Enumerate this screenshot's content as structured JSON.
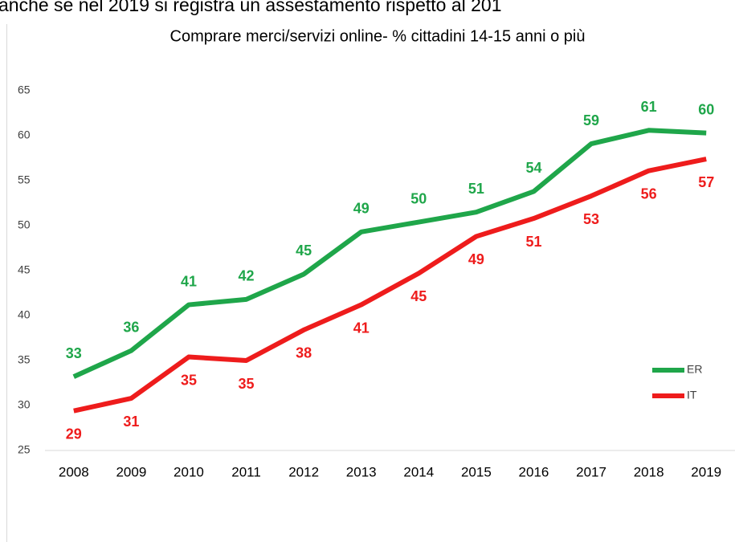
{
  "caption": "anche se nel 2019 si registra un assestamento rispetto al 201",
  "chart_data": {
    "type": "line",
    "title": "Comprare merci/servizi online- % cittadini 14-15 anni o più",
    "categories": [
      "2008",
      "2009",
      "2010",
      "2011",
      "2012",
      "2013",
      "2014",
      "2015",
      "2016",
      "2017",
      "2018",
      "2019"
    ],
    "series": [
      {
        "name": "ER",
        "color": "#1fa64a",
        "values": [
          33.2,
          36.1,
          41.2,
          41.8,
          44.6,
          49.3,
          50.4,
          51.5,
          53.8,
          59.1,
          60.6,
          60.3
        ],
        "value_labels": [
          "33",
          "36",
          "41",
          "42",
          "45",
          "49",
          "50",
          "51",
          "54",
          "59",
          "61",
          "60"
        ]
      },
      {
        "name": "IT",
        "color": "#ee1c1c",
        "values": [
          29.4,
          30.8,
          35.4,
          35.0,
          38.4,
          41.2,
          44.7,
          48.8,
          50.8,
          53.3,
          56.1,
          57.4
        ],
        "value_labels": [
          "29",
          "31",
          "35",
          "35",
          "38",
          "41",
          "45",
          "49",
          "51",
          "53",
          "56",
          "57"
        ]
      }
    ],
    "ylim": [
      25,
      65
    ],
    "yticks": [
      25,
      30,
      35,
      40,
      45,
      50,
      55,
      60,
      65
    ],
    "legend": "right"
  }
}
